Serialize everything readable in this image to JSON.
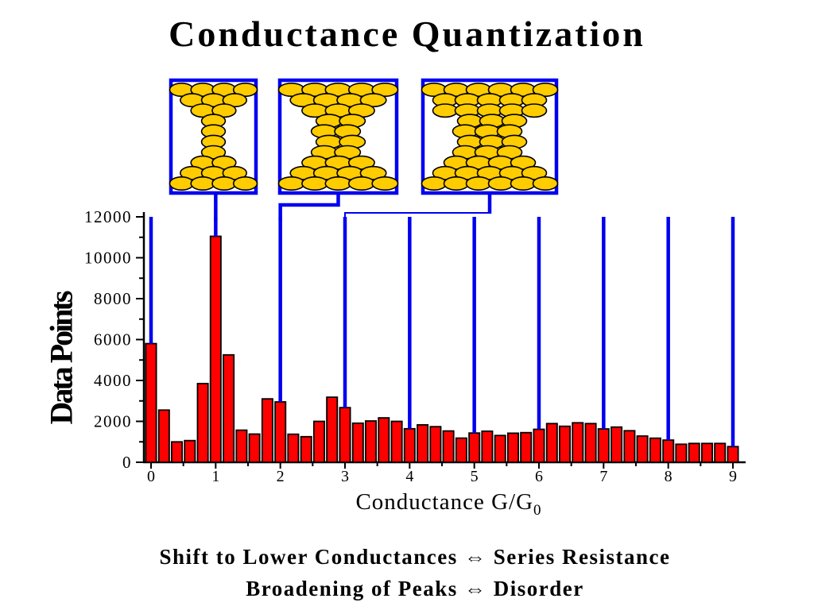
{
  "title": "Conductance Quantization",
  "colors": {
    "bar_red": "#ff0000",
    "line_blue": "#0000f0",
    "atom_gold": "#ffcc00",
    "outline_black": "#000000",
    "background": "#ffffff"
  },
  "junction_boxes": [
    {
      "name": "one-atom-neck-contact",
      "neck_atoms": 1,
      "rows": [
        4,
        3,
        2,
        1,
        1,
        1,
        1,
        2,
        3,
        4
      ],
      "points_to_conductance": 1
    },
    {
      "name": "two-atom-neck-contact",
      "neck_atoms": 2,
      "rows": [
        5,
        4,
        3,
        2,
        2,
        2,
        2,
        3,
        4,
        5
      ],
      "points_to_conductance": 2
    },
    {
      "name": "three-atom-neck-contact",
      "neck_atoms": 3,
      "rows": [
        6,
        5,
        5,
        3,
        3,
        3,
        3,
        4,
        5,
        6
      ],
      "points_to_conductance": 3
    }
  ],
  "chart_data": {
    "type": "bar",
    "title": "",
    "xlabel": "Conductance G/G",
    "xlabel_subscript": "0",
    "ylabel": "Data Points",
    "xlim": [
      -0.2,
      9.3
    ],
    "ylim": [
      0,
      12000
    ],
    "grid": false,
    "legend": "none",
    "bar_step": 0.2,
    "x": [
      0,
      0.2,
      0.4,
      0.6,
      0.8,
      1,
      1.2,
      1.4,
      1.6,
      1.8,
      2,
      2.2,
      2.4,
      2.6,
      2.8,
      3,
      3.2,
      3.4,
      3.6,
      3.8,
      4,
      4.2,
      4.4,
      4.6,
      4.8,
      5,
      5.2,
      5.4,
      5.6,
      5.8,
      6,
      6.2,
      6.4,
      6.6,
      6.8,
      7,
      7.2,
      7.4,
      7.6,
      7.8,
      8,
      8.2,
      8.4,
      8.6,
      8.8,
      9
    ],
    "values": [
      5800,
      2550,
      1000,
      1060,
      3850,
      11050,
      5250,
      1570,
      1380,
      3100,
      2950,
      1370,
      1250,
      2000,
      3180,
      2670,
      1910,
      2020,
      2170,
      2000,
      1640,
      1830,
      1740,
      1530,
      1180,
      1430,
      1520,
      1310,
      1420,
      1450,
      1610,
      1890,
      1760,
      1930,
      1890,
      1630,
      1720,
      1540,
      1280,
      1175,
      1085,
      880,
      920,
      920,
      920,
      765
    ],
    "x_ticks": [
      0,
      1,
      2,
      3,
      4,
      5,
      6,
      7,
      8,
      9
    ],
    "x_tick_labels": [
      "0",
      "1",
      "2",
      "3",
      "4",
      "5",
      "6",
      "7",
      "8",
      "9"
    ],
    "y_ticks": [
      0,
      2000,
      4000,
      6000,
      8000,
      10000,
      12000
    ],
    "y_tick_labels": [
      "0",
      "2000",
      "4000",
      "6000",
      "8000",
      "10000",
      "12000"
    ],
    "quantum_marker_positions": [
      0,
      1,
      2,
      3,
      4,
      5,
      6,
      7,
      8,
      9
    ]
  },
  "captions": [
    "Shift to Lower Conductances ⇔ Series Resistance",
    "Broadening of Peaks ⇔ Disorder"
  ]
}
